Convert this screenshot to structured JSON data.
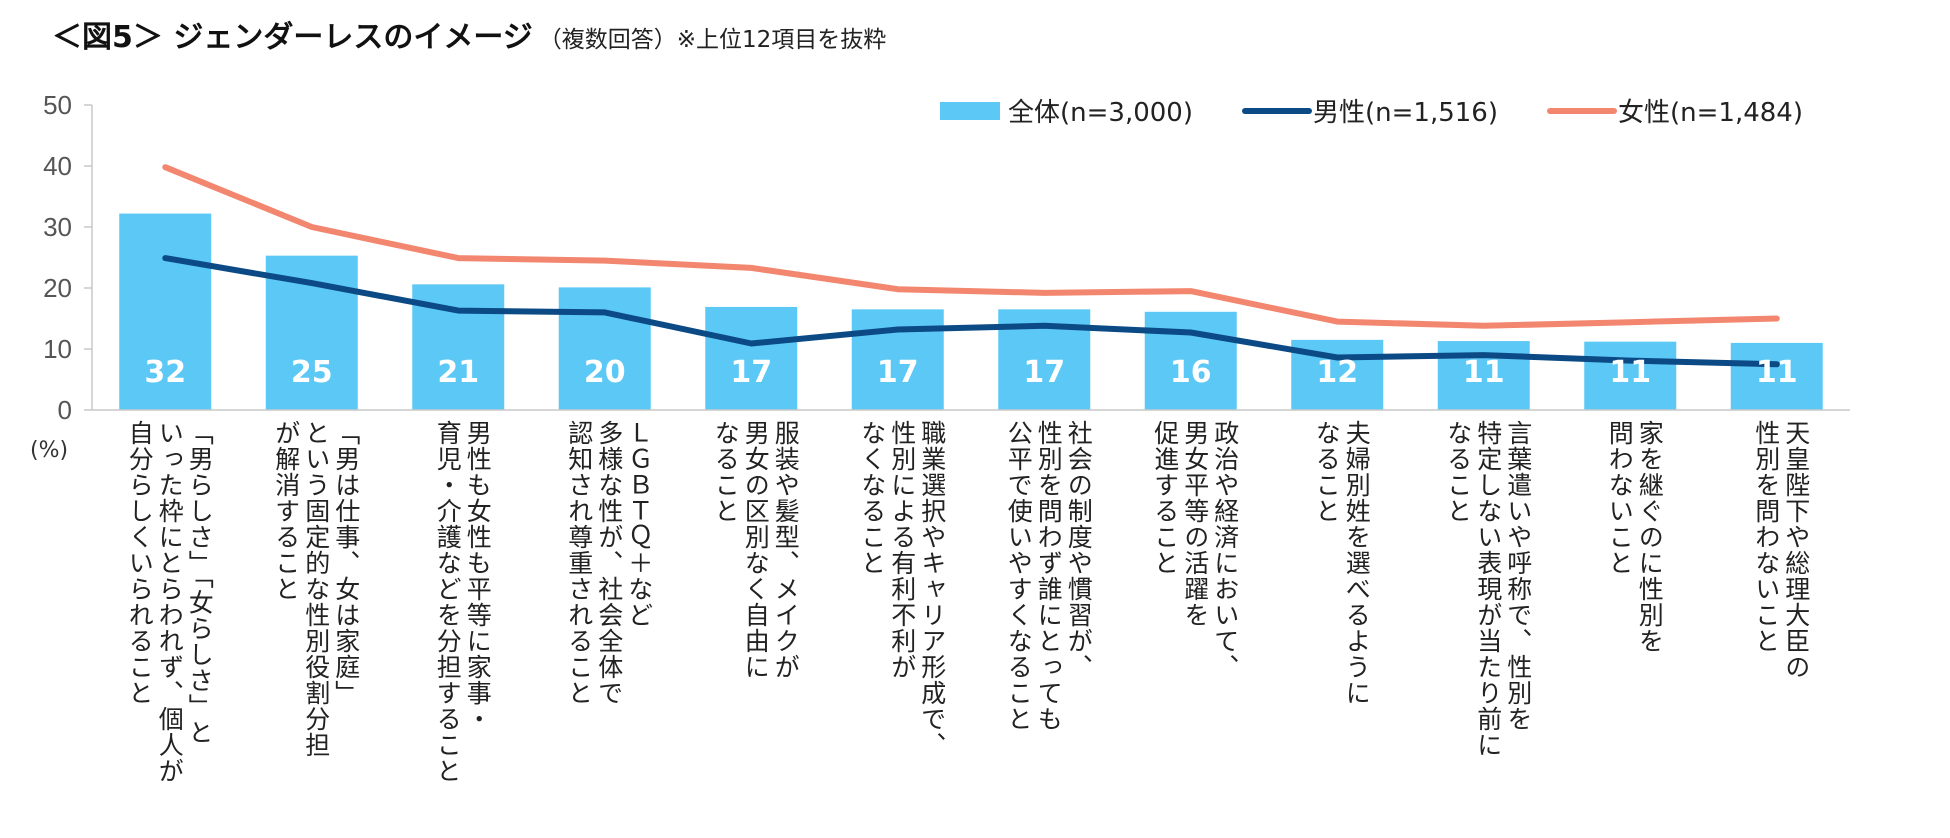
{
  "header": {
    "title": "＜図5＞ ジェンダーレスのイメージ",
    "subtitle": "（複数回答）※上位12項目を抜粋"
  },
  "chart_data": {
    "type": "bar",
    "title": "＜図5＞ ジェンダーレスのイメージ",
    "subtitle": "（複数回答）※上位12項目を抜粋",
    "ylabel": "(%)",
    "ylim": [
      0,
      50
    ],
    "yticks": [
      0,
      10,
      20,
      30,
      40,
      50
    ],
    "grid": false,
    "legend_position": "top-right",
    "categories": [
      "「男らしさ」「女らしさ」と\nいった枠にとらわれず、個人が\n自分らしくいられること",
      "「男は仕事、女は家庭」\nという固定的な性別役割分担\nが解消すること",
      "男性も女性も平等に家事・\n育児・介護などを分担すること",
      "ＬＧＢＴＱ＋など\n多様な性が、社会全体で\n認知され尊重されること",
      "服装や髪型、メイクが\n男女の区別なく自由に\nなること",
      "職業選択やキャリア形成で、\n性別による有利不利が\nなくなること",
      "社会の制度や慣習が、\n性別を問わず誰にとっても\n公平で使いやすくなること",
      "政治や経済において、\n男女平等の活躍を\n促進すること",
      "夫婦別姓を選べるように\nなること",
      "言葉遣いや呼称で、性別を\n特定しない表現が当たり前に\nなること",
      "家を継ぐのに性別を\n問わないこと",
      "天皇陛下や総理大臣の\n性別を問わないこと"
    ],
    "series": [
      {
        "name": "全体(n=3,000)",
        "kind": "bar",
        "color": "#5bc8f5",
        "values": [
          32.2,
          25.3,
          20.6,
          20.1,
          16.9,
          16.5,
          16.5,
          16.1,
          11.5,
          11.3,
          11.2,
          11.0
        ],
        "labels": [
          "32",
          "25",
          "21",
          "20",
          "17",
          "17",
          "17",
          "16",
          "12",
          "11",
          "11",
          "11"
        ]
      },
      {
        "name": "男性(n=1,516)",
        "kind": "line",
        "color": "#0b4a85",
        "values": [
          24.9,
          20.8,
          16.3,
          16.0,
          10.9,
          13.2,
          13.8,
          12.7,
          8.6,
          9.0,
          8.1,
          7.5
        ]
      },
      {
        "name": "女性(n=1,484)",
        "kind": "line",
        "color": "#f3866f",
        "values": [
          39.8,
          30.0,
          24.9,
          24.5,
          23.3,
          19.8,
          19.2,
          19.5,
          14.5,
          13.8,
          14.4,
          15.0
        ]
      }
    ]
  }
}
